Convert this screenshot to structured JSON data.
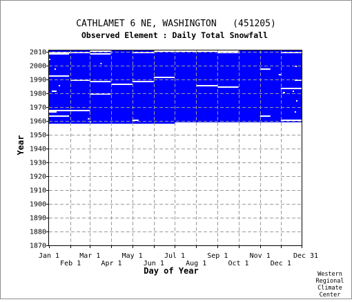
{
  "chart_data": {
    "type": "heatmap",
    "title": "CATHLAMET 6 NE, WASHINGTON   (451205)",
    "subtitle": "Observed Element : Daily Total Snowfall",
    "xlabel": "Day of Year",
    "ylabel": "Year",
    "xlim": [
      1,
      365
    ],
    "ylim": [
      1870,
      2012
    ],
    "x_ticks_top": [
      {
        "label": "Jan 1",
        "day": 1
      },
      {
        "label": "Mar 1",
        "day": 60
      },
      {
        "label": "May 1",
        "day": 121
      },
      {
        "label": "Jul 1",
        "day": 182
      },
      {
        "label": "Sep 1",
        "day": 244
      },
      {
        "label": "Nov 1",
        "day": 305
      },
      {
        "label": "Dec 31",
        "day": 365
      }
    ],
    "x_ticks_bottom": [
      {
        "label": "Feb 1",
        "day": 32
      },
      {
        "label": "Apr 1",
        "day": 91
      },
      {
        "label": "Jun 1",
        "day": 152
      },
      {
        "label": "Aug 1",
        "day": 213
      },
      {
        "label": "Oct 1",
        "day": 274
      },
      {
        "label": "Dec 1",
        "day": 335
      }
    ],
    "y_ticks": [
      1870,
      1880,
      1890,
      1900,
      1910,
      1920,
      1930,
      1940,
      1950,
      1960,
      1970,
      1980,
      1990,
      2000,
      2010
    ],
    "grid": true,
    "data_color": "#0000ff",
    "data_period": {
      "start_year": 1958,
      "end_year": 2010
    },
    "coverage_blocks": [
      {
        "year_from": 1958,
        "year_to": 2010,
        "day_from": 1,
        "day_to": 365
      }
    ],
    "missing_segments": [
      {
        "year": 2009,
        "day_from": 1,
        "day_to": 60
      },
      {
        "year": 2009,
        "day_from": 121,
        "day_to": 152
      },
      {
        "year": 2009,
        "day_from": 244,
        "day_to": 274
      },
      {
        "year": 2009,
        "day_from": 335,
        "day_to": 365
      },
      {
        "year": 2008,
        "day_from": 1,
        "day_to": 30
      },
      {
        "year": 2008,
        "day_from": 60,
        "day_to": 90
      },
      {
        "year": 2010,
        "day_from": 60,
        "day_to": 90
      },
      {
        "year": 2010,
        "day_from": 152,
        "day_to": 274
      },
      {
        "year": 2004,
        "day_from": 1,
        "day_to": 3
      },
      {
        "year": 2001,
        "day_from": 75,
        "day_to": 77
      },
      {
        "year": 1997,
        "day_from": 9,
        "day_to": 11
      },
      {
        "year": 1997,
        "day_from": 305,
        "day_to": 320
      },
      {
        "year": 1992,
        "day_from": 1,
        "day_to": 30
      },
      {
        "year": 1989,
        "day_from": 32,
        "day_to": 60
      },
      {
        "year": 1988,
        "day_from": 60,
        "day_to": 90
      },
      {
        "year": 1986,
        "day_from": 91,
        "day_to": 121
      },
      {
        "year": 1988,
        "day_from": 121,
        "day_to": 152
      },
      {
        "year": 1991,
        "day_from": 152,
        "day_to": 182
      },
      {
        "year": 1985,
        "day_from": 213,
        "day_to": 244
      },
      {
        "year": 1984,
        "day_from": 244,
        "day_to": 274
      },
      {
        "year": 1983,
        "day_from": 335,
        "day_to": 365
      },
      {
        "year": 1985,
        "day_from": 15,
        "day_to": 17
      },
      {
        "year": 1981,
        "day_from": 5,
        "day_to": 12
      },
      {
        "year": 1979,
        "day_from": 60,
        "day_to": 90
      },
      {
        "year": 1967,
        "day_from": 1,
        "day_to": 60
      },
      {
        "year": 1966,
        "day_from": 1,
        "day_to": 12
      },
      {
        "year": 1963,
        "day_from": 1,
        "day_to": 30
      },
      {
        "year": 1961,
        "day_from": 57,
        "day_to": 59
      },
      {
        "year": 1960,
        "day_from": 121,
        "day_to": 130
      },
      {
        "year": 1959,
        "day_from": 60,
        "day_to": 62
      },
      {
        "year": 1963,
        "day_from": 305,
        "day_to": 320
      },
      {
        "year": 1960,
        "day_from": 335,
        "day_to": 365
      },
      {
        "year": 1966,
        "day_from": 355,
        "day_to": 357
      },
      {
        "year": 1974,
        "day_from": 357,
        "day_to": 359
      },
      {
        "year": 1981,
        "day_from": 352,
        "day_to": 354
      },
      {
        "year": 1980,
        "day_from": 338,
        "day_to": 341
      },
      {
        "year": 1993,
        "day_from": 332,
        "day_to": 335
      },
      {
        "year": 1989,
        "day_from": 355,
        "day_to": 365
      },
      {
        "year": 1999,
        "day_from": 356,
        "day_to": 358
      },
      {
        "year": 1958,
        "day_from": 182,
        "day_to": 365
      }
    ],
    "credit": [
      "Western",
      "Regional",
      "Climate",
      "Center"
    ]
  }
}
